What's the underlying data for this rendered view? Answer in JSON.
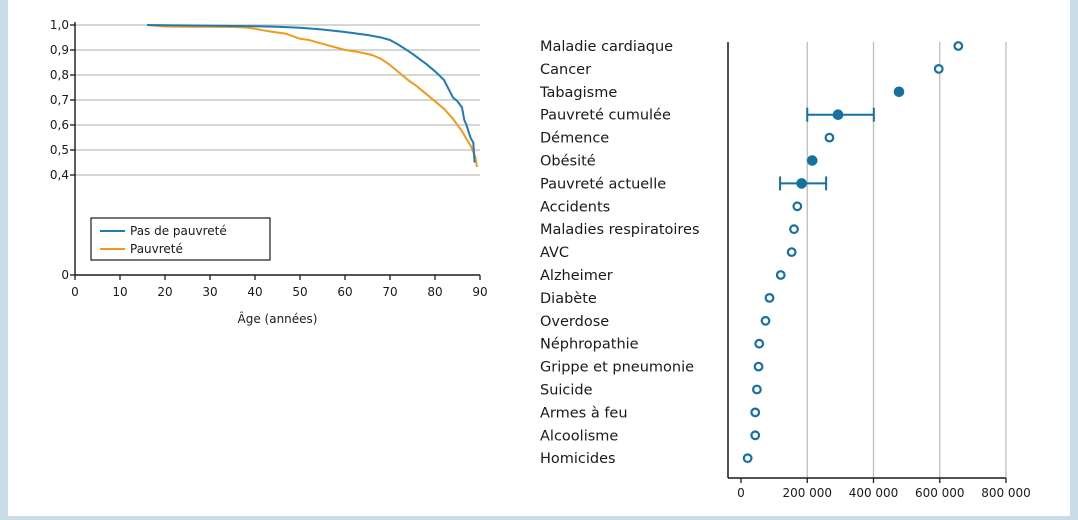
{
  "chart_data": [
    {
      "type": "line",
      "title": "",
      "xlabel": "Âge (années)",
      "ylabel": "",
      "xlim": [
        0,
        90
      ],
      "ylim": [
        0,
        1.0
      ],
      "xticks": [
        "0",
        "10",
        "20",
        "30",
        "40",
        "50",
        "60",
        "70",
        "80",
        "90"
      ],
      "yticks": [
        "0",
        "0,4",
        "0,5",
        "0,6",
        "0,7",
        "0,8",
        "0,9",
        "1,0"
      ],
      "grid": "horizontal",
      "legend": "bottom-left",
      "series": [
        {
          "name": "Pas de pauvreté",
          "color": "#1f7bb0",
          "points": [
            [
              16,
              1.0
            ],
            [
              20,
              0.999
            ],
            [
              25,
              0.998
            ],
            [
              30,
              0.997
            ],
            [
              35,
              0.996
            ],
            [
              40,
              0.995
            ],
            [
              45,
              0.993
            ],
            [
              50,
              0.989
            ],
            [
              55,
              0.982
            ],
            [
              60,
              0.972
            ],
            [
              65,
              0.96
            ],
            [
              68,
              0.95
            ],
            [
              70,
              0.94
            ],
            [
              72,
              0.92
            ],
            [
              75,
              0.885
            ],
            [
              78,
              0.845
            ],
            [
              80,
              0.815
            ],
            [
              82,
              0.78
            ],
            [
              83,
              0.745
            ],
            [
              84,
              0.71
            ],
            [
              85,
              0.695
            ],
            [
              86,
              0.67
            ],
            [
              86.5,
              0.62
            ],
            [
              87,
              0.6
            ],
            [
              87.5,
              0.57
            ],
            [
              88,
              0.545
            ],
            [
              88.5,
              0.53
            ],
            [
              88.8,
              0.45
            ]
          ]
        },
        {
          "name": "Pauvreté",
          "color": "#f29b1b",
          "points": [
            [
              16,
              1.0
            ],
            [
              20,
              0.994
            ],
            [
              25,
              0.993
            ],
            [
              30,
              0.993
            ],
            [
              35,
              0.992
            ],
            [
              38,
              0.99
            ],
            [
              40,
              0.985
            ],
            [
              43,
              0.975
            ],
            [
              45,
              0.97
            ],
            [
              47,
              0.965
            ],
            [
              48,
              0.958
            ],
            [
              50,
              0.945
            ],
            [
              52,
              0.94
            ],
            [
              55,
              0.925
            ],
            [
              58,
              0.91
            ],
            [
              60,
              0.9
            ],
            [
              63,
              0.892
            ],
            [
              66,
              0.88
            ],
            [
              68,
              0.865
            ],
            [
              70,
              0.84
            ],
            [
              72,
              0.81
            ],
            [
              74,
              0.78
            ],
            [
              76,
              0.755
            ],
            [
              78,
              0.725
            ],
            [
              80,
              0.695
            ],
            [
              82,
              0.665
            ],
            [
              84,
              0.625
            ],
            [
              86,
              0.575
            ],
            [
              87,
              0.545
            ],
            [
              88,
              0.515
            ],
            [
              89,
              0.47
            ],
            [
              89.3,
              0.432
            ]
          ]
        }
      ]
    },
    {
      "type": "scatter",
      "title": "",
      "xlabel": "",
      "ylabel": "",
      "xlim": [
        0,
        800000
      ],
      "xticks": [
        "0",
        "200 000",
        "400 000",
        "600 000",
        "800 000"
      ],
      "grid": "vertical",
      "categories": [
        "Maladie cardiaque",
        "Cancer",
        "Tabagisme",
        "Pauvreté cumulée",
        "Démence",
        "Obésité",
        "Pauvreté actuelle",
        "Accidents",
        "Maladies respiratoires",
        "AVC",
        "Alzheimer",
        "Diabète",
        "Overdose",
        "Néphropathie",
        "Grippe et pneumonie",
        "Suicide",
        "Armes à feu",
        "Alcoolisme",
        "Homicides"
      ],
      "values": [
        656000,
        597000,
        477000,
        293000,
        267000,
        215000,
        183000,
        170000,
        160000,
        153000,
        120000,
        86000,
        74000,
        55000,
        53000,
        48000,
        43000,
        43000,
        20000
      ],
      "marker": [
        "open",
        "open",
        "filled",
        "filled",
        "open",
        "filled",
        "filled",
        "open",
        "open",
        "open",
        "open",
        "open",
        "open",
        "open",
        "open",
        "open",
        "open",
        "open",
        "open"
      ],
      "error_bars": [
        {
          "category": "Pauvreté cumulée",
          "low": 200000,
          "high": 401000
        },
        {
          "category": "Pauvreté actuelle",
          "low": 118000,
          "high": 257000
        }
      ],
      "color": "#1670a0"
    }
  ]
}
